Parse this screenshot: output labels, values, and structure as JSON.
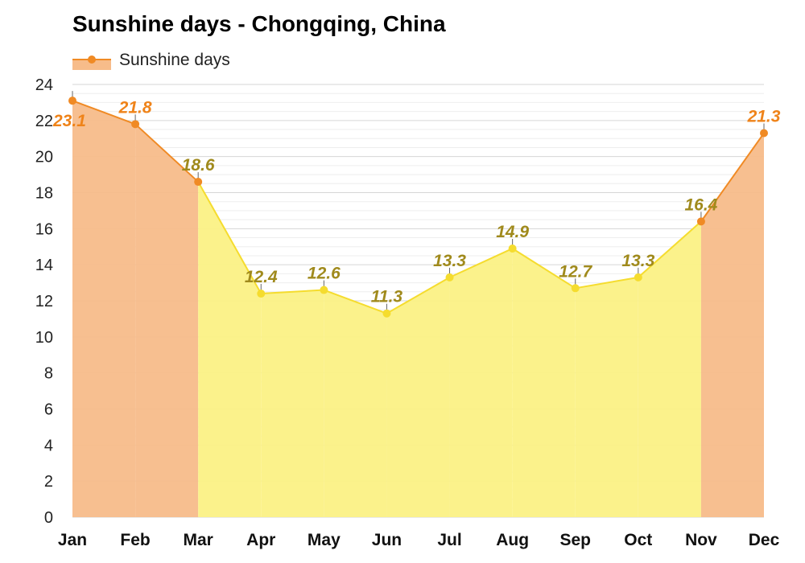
{
  "chart_data": {
    "type": "area",
    "title": "Sunshine days - Chongqing, China",
    "xlabel": "",
    "ylabel": "",
    "ylim": [
      0,
      24
    ],
    "yticks": [
      0,
      2,
      4,
      6,
      8,
      10,
      12,
      14,
      16,
      18,
      20,
      22,
      24
    ],
    "grid": true,
    "legend_position": "top-left",
    "categories": [
      "Jan",
      "Feb",
      "Mar",
      "Apr",
      "May",
      "Jun",
      "Jul",
      "Aug",
      "Sep",
      "Oct",
      "Nov",
      "Dec"
    ],
    "series": [
      {
        "name": "Sunshine days",
        "values": [
          23.1,
          21.8,
          18.6,
          12.4,
          12.6,
          11.3,
          13.3,
          14.9,
          12.7,
          13.3,
          16.4,
          21.3
        ],
        "labels": [
          "23.1",
          "21.8",
          "18.6",
          "12.4",
          "12.6",
          "11.3",
          "13.3",
          "14.9",
          "12.7",
          "13.3",
          "16.4",
          "21.3"
        ]
      }
    ],
    "colors": {
      "line_orange": "#f08a24",
      "line_yellow": "#f5dc2e",
      "label_orange": "#ef8319",
      "label_olive": "#a08a1c",
      "band_strong": "#f7bc8a",
      "band_mid": "#f9cf98",
      "band_light": "#fbf185",
      "band_pale": "#fdf7b0",
      "grid": "#e3e3e3"
    }
  }
}
